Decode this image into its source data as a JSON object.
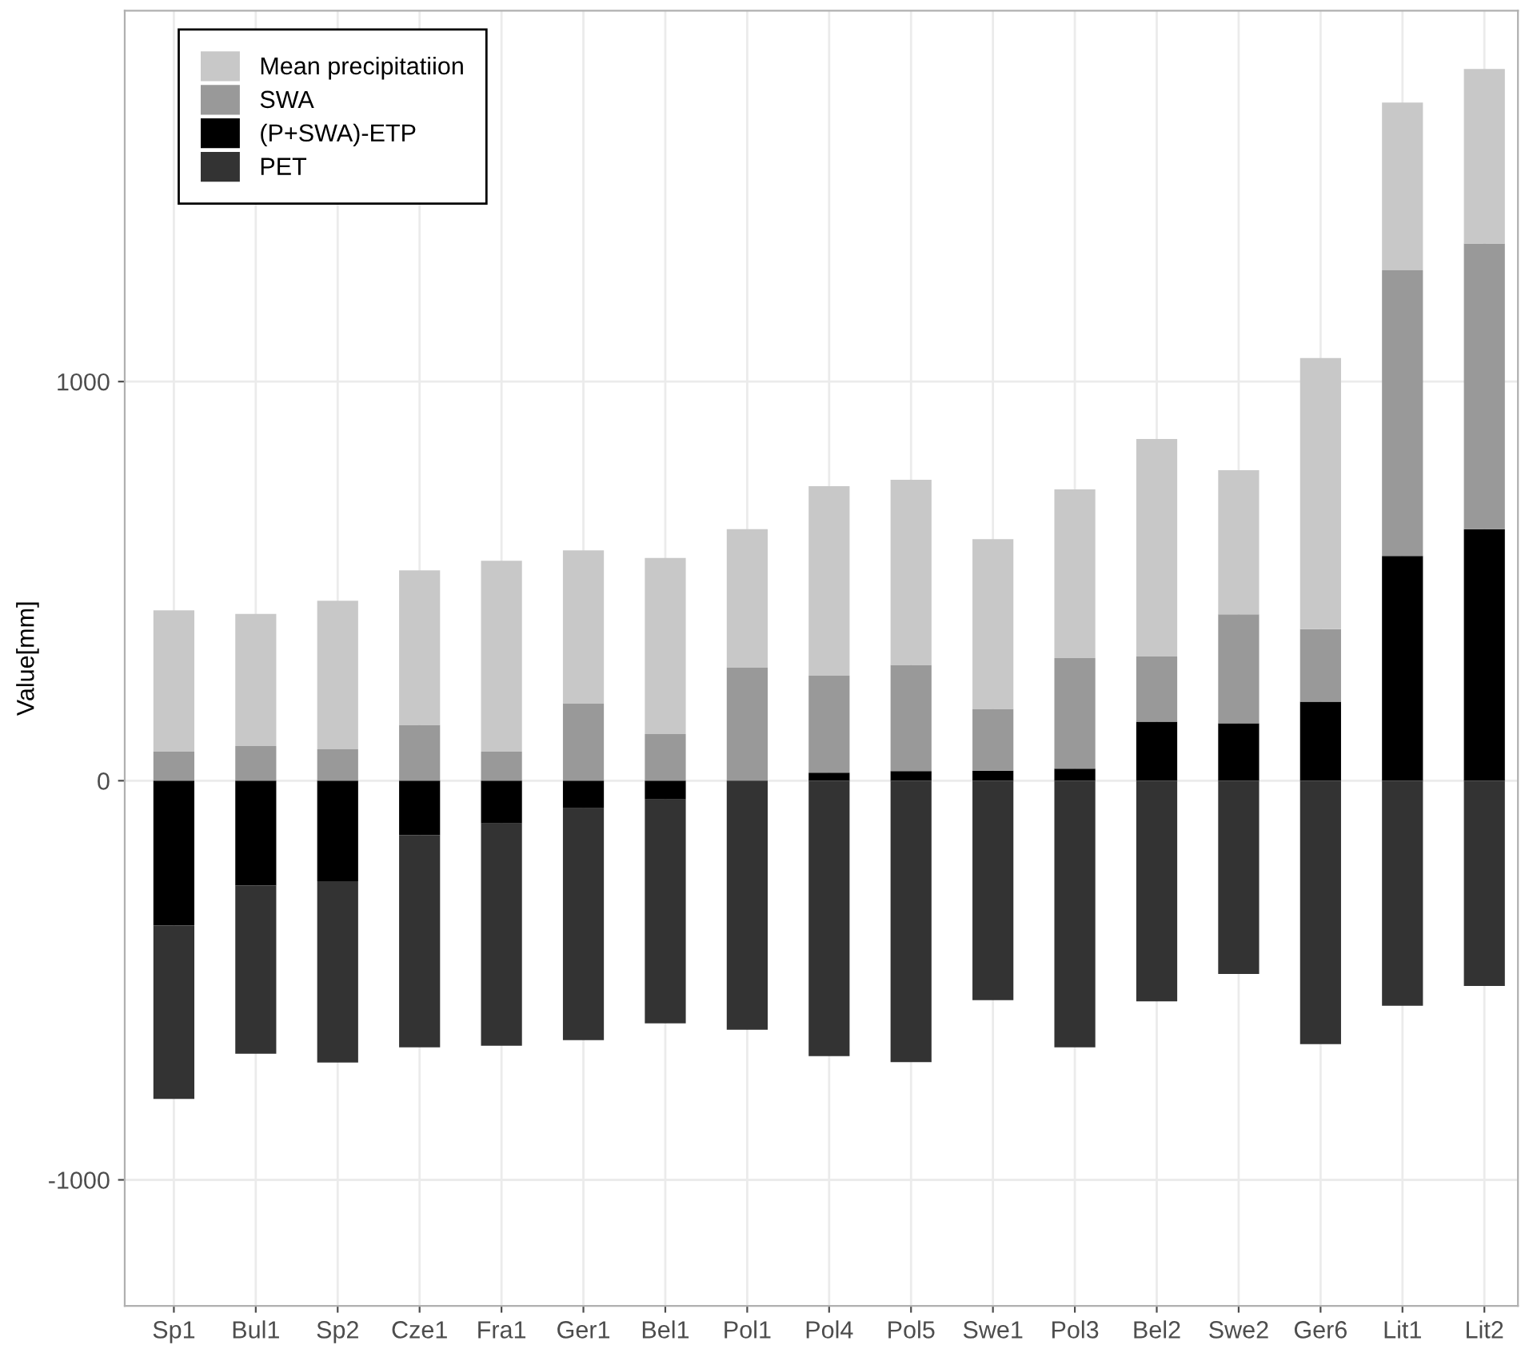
{
  "chart_data": {
    "type": "bar",
    "stacked": true,
    "ylabel": "Value[mm]",
    "categories": [
      "Sp1",
      "Bul1",
      "Sp2",
      "Cze1",
      "Fra1",
      "Ger1",
      "Bel1",
      "Pol1",
      "Pol4",
      "Pol5",
      "Swe1",
      "Pol3",
      "Bel2",
      "Swe2",
      "Ger6",
      "Lit1",
      "Lit2"
    ],
    "series": [
      {
        "name": "(P+SWA)-ETP",
        "color": "#000000",
        "values": [
          -363,
          -263,
          -252,
          -136,
          -107,
          -69,
          -47,
          0,
          20,
          24,
          25,
          30,
          148,
          144,
          198,
          563,
          630
        ]
      },
      {
        "name": "SWA",
        "color": "#999999",
        "values": [
          73,
          87,
          79,
          140,
          73,
          193,
          117,
          283,
          243,
          266,
          155,
          277,
          163,
          273,
          182,
          716,
          716
        ]
      },
      {
        "name": "Mean precipitatiion",
        "color": "#c8c8c8",
        "values": [
          354,
          331,
          372,
          387,
          478,
          384,
          441,
          347,
          475,
          464,
          425,
          423,
          545,
          361,
          679,
          420,
          437
        ]
      },
      {
        "name": "PET",
        "color": "#333333",
        "values": [
          -434,
          -421,
          -454,
          -532,
          -557,
          -581,
          -561,
          -624,
          -690,
          -705,
          -550,
          -668,
          -553,
          -484,
          -660,
          -564,
          -514
        ]
      }
    ],
    "ylim": [
      -1316,
      1929
    ],
    "yticks": [
      -1000,
      0,
      1000
    ],
    "grid": true,
    "legend": "top left"
  }
}
